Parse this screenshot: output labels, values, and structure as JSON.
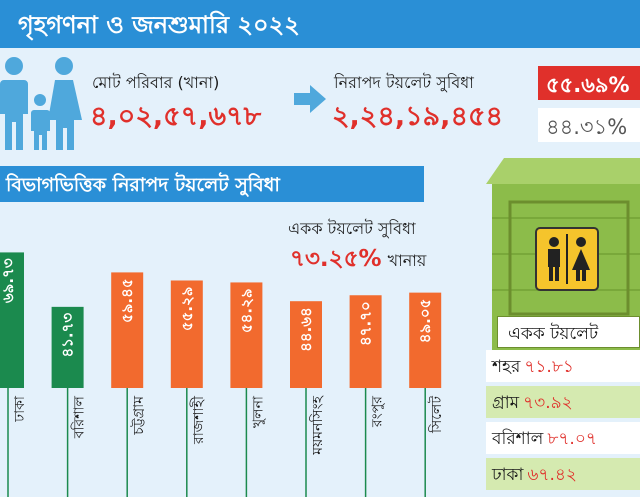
{
  "header": {
    "title": "গৃহগণনা ও জনশুমারি ২০২২"
  },
  "summary": {
    "households_label": "মোট পরিবার (খানা)",
    "households_value": "৪,০২,৫৭,৬৭৮",
    "safe_toilet_label": "নিরাপদ টয়লেট সুবিধা",
    "safe_toilet_value": "২,২৪,১৯,৪৫৪",
    "safe_pct": "৫৫.৬৯%",
    "other_pct": "৪৪.৩১%"
  },
  "single_toilet": {
    "label": "একক টয়লেট সুবিধা",
    "pct": "৭৩.২৫%",
    "tail": "খানায়",
    "sign_text": "একক টয়লেট",
    "rows": [
      {
        "label": "শহর",
        "value": "৭১.৮১"
      },
      {
        "label": "গ্রাম",
        "value": "৭৩.৯২"
      },
      {
        "label": "বরিশাল",
        "value": "৮৭.০৭"
      },
      {
        "label": "ঢাকা",
        "value": "৬৭.৪২"
      }
    ]
  },
  "colors": {
    "accent_blue": "#2a8fd6",
    "green": "#1b8a4e",
    "orange": "#f26a2e",
    "red": "#e0302b",
    "background": "#e4f1fb"
  },
  "icons": [
    "family-icon",
    "arrow-right-icon",
    "toilet-sign-icon"
  ],
  "chart_data": {
    "type": "bar",
    "title": "বিভাগভিত্তিক নিরাপদ টয়লেট সুবিধা",
    "categories": [
      "ঢাকা",
      "বরিশাল",
      "চট্টগ্রাম",
      "রাজশাহী",
      "খুলনা",
      "ময়মনসিংহ",
      "রংপুর",
      "সিলেট"
    ],
    "values": [
      69.73,
      41.73,
      59.45,
      55.29,
      54.29,
      44.64,
      47.7,
      49.05
    ],
    "value_labels": [
      "৬৯.৭৩",
      "৪১.৭৩",
      "৫৯.৪৫",
      "৫৫.২৯",
      "৫৪.২৯",
      "৪৪.৬৪",
      "৪৭.৭০",
      "৪৯.০৫"
    ],
    "bar_colors": [
      "#1b8a4e",
      "#1b8a4e",
      "#f26a2e",
      "#f26a2e",
      "#f26a2e",
      "#f26a2e",
      "#f26a2e",
      "#f26a2e"
    ],
    "ylim": [
      0,
      72
    ]
  }
}
